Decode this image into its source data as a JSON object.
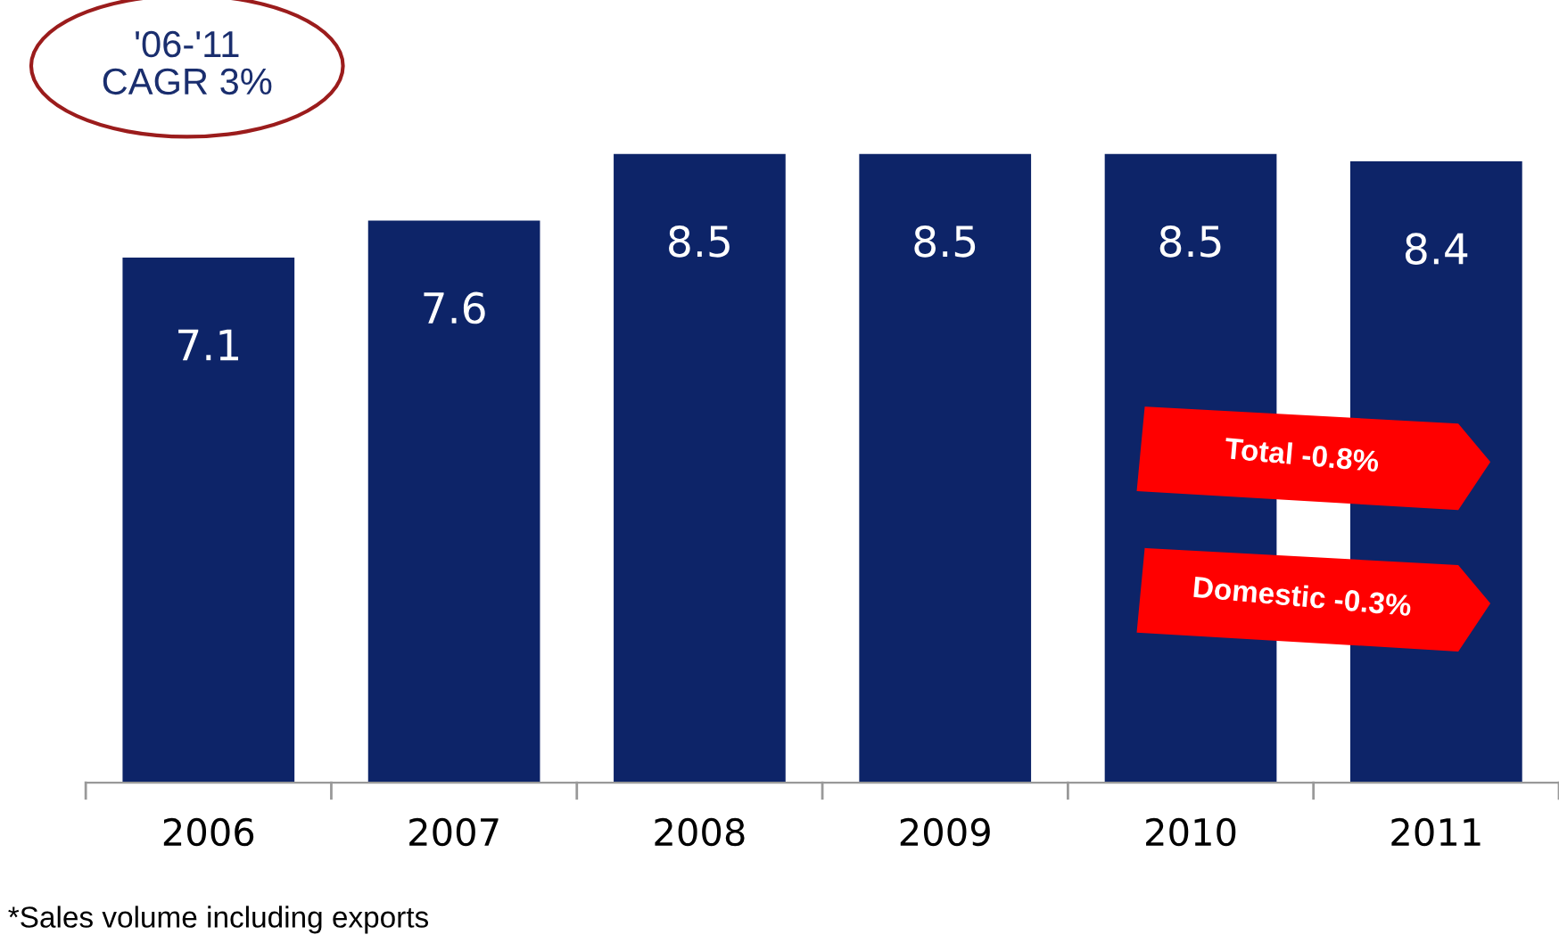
{
  "chart_data": {
    "type": "bar",
    "categories": [
      "2006",
      "2007",
      "2008",
      "2009",
      "2010",
      "2011"
    ],
    "values": [
      7.1,
      7.6,
      8.5,
      8.5,
      8.5,
      8.4
    ],
    "color": "#0d2468",
    "data_labels": true,
    "grid": false,
    "legend": false,
    "tick_labels": "x",
    "annotations": [
      "'06-'11\nCAGR 3%",
      "Total -0.8%",
      "Domestic -0.3%",
      "*Sales volume including exports"
    ]
  }
}
